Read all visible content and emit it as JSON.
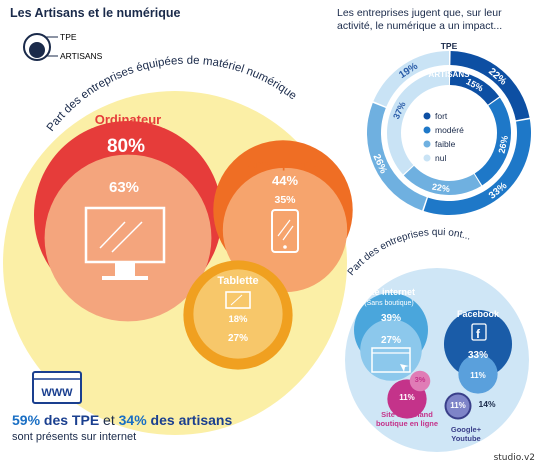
{
  "title": "Les Artisans et le numérique",
  "legend": {
    "tpe": "TPE",
    "artisans": "ARTISANS"
  },
  "chart_data": [
    {
      "type": "bubble",
      "title": "Part des entreprises  équipées de matériel numérique",
      "series": [
        {
          "name": "TPE"
        },
        {
          "name": "ARTISANS"
        }
      ],
      "categories": [
        "Ordinateur",
        "Smartphone",
        "Tablette"
      ],
      "values": {
        "tpe": [
          80,
          44,
          27
        ],
        "artisans": [
          63,
          35,
          18
        ]
      },
      "labels": {
        "tpe": [
          "80%",
          "44%",
          "27%"
        ],
        "artisans": [
          "63%",
          "35%",
          "18%"
        ]
      },
      "colors": {
        "background": "#fbefa6",
        "ordinateur": [
          "#e63c3a",
          "#f4a57d"
        ],
        "smartphone": [
          "#ef6e24",
          "#f6a46d"
        ],
        "tablette": [
          "#f0a020",
          "#f7c76a"
        ]
      }
    },
    {
      "type": "donut",
      "title": "Les entreprises jugent que, sur leur activité, le numérique a un impact...",
      "categories": [
        "fort",
        "modéré",
        "faible",
        "nul"
      ],
      "series": [
        {
          "name": "TPE",
          "values": [
            22,
            33,
            26,
            19
          ]
        },
        {
          "name": "ARTISANS",
          "values": [
            15,
            26,
            22,
            37
          ]
        }
      ],
      "labels": {
        "tpe": [
          "22%",
          "33%",
          "26%",
          "19%"
        ],
        "artisans": [
          "15%",
          "26%",
          "22%",
          "37%"
        ]
      },
      "colors": [
        "#0d4fa3",
        "#1e78c8",
        "#6fb0e0",
        "#c9e3f5"
      ]
    },
    {
      "type": "bubble",
      "title": "Part des entreprises qui ont...",
      "categories": [
        "Site internet (Sans boutique)",
        "Facebook",
        "Site marchand boutique en ligne",
        "Google+ Youtube"
      ],
      "category_labels": {
        "site": [
          "Site internet",
          "(Sans boutique)"
        ],
        "facebook": "Facebook",
        "marchand": [
          "Site marchand",
          "boutique en ligne"
        ],
        "google": [
          "Google+",
          "Youtube"
        ]
      },
      "values": {
        "tpe": [
          39,
          33,
          11,
          14
        ],
        "artisans": [
          27,
          11,
          3,
          11
        ]
      },
      "labels": {
        "tpe": [
          "39%",
          "33%",
          "11%",
          "14%"
        ],
        "artisans": [
          "27%",
          "11%",
          "3%",
          "11%"
        ]
      },
      "colors": {
        "background": "#cfe6f6",
        "site": [
          "#4aa6dc",
          "#8cc8ec"
        ],
        "facebook": [
          "#1a5ca8",
          "#5aa0dc"
        ],
        "marchand": [
          "#c4338a",
          "#e07cb6"
        ],
        "google": [
          "#3a3f8a",
          "#7e84c8"
        ]
      }
    }
  ],
  "summary": {
    "tpe_value": "59%",
    "tpe_text": " des TPE",
    "connector": " et ",
    "art_value": "34%",
    "art_text": " des artisans",
    "sub": "sont présents sur internet",
    "www": "WWW"
  },
  "credit": "studio.v2"
}
